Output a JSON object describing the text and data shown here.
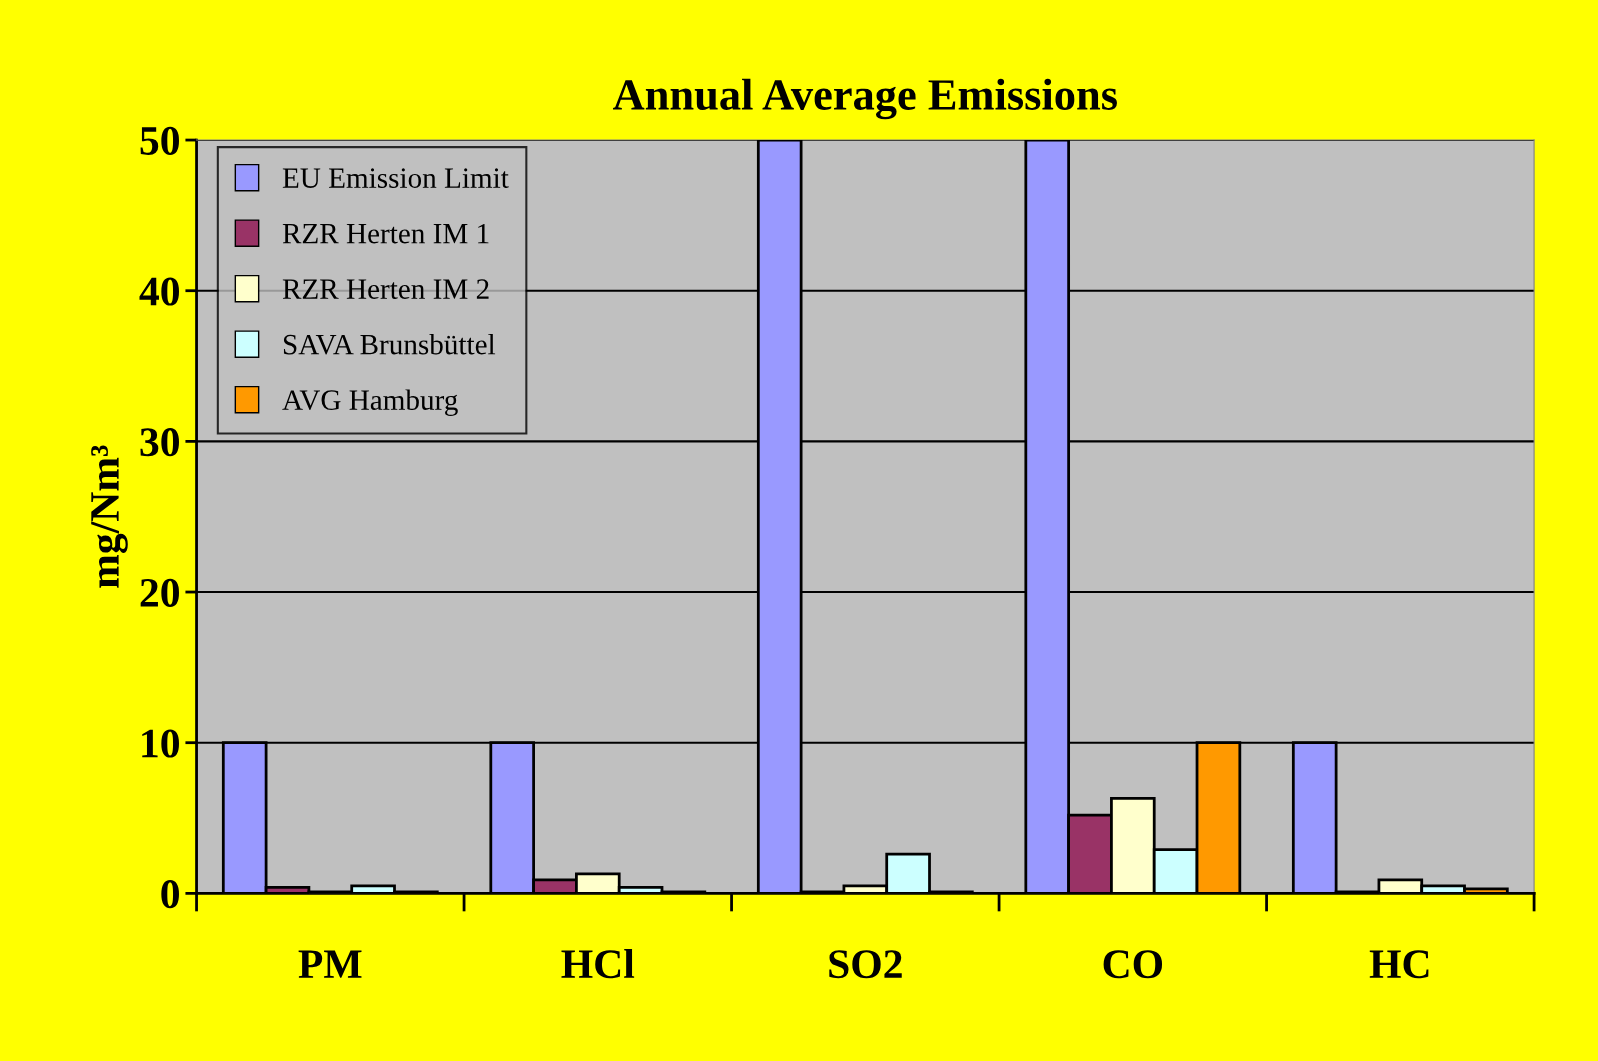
{
  "chart_data": {
    "type": "bar",
    "title": "Annual Average Emissions",
    "ylabel": "mg/Nm³",
    "categories": [
      "PM",
      "HCl",
      "SO2",
      "CO",
      "HC"
    ],
    "series": [
      {
        "name": "EU Emission Limit",
        "color": "#9999ff",
        "values": [
          10,
          10,
          50,
          50,
          10
        ]
      },
      {
        "name": "RZR Herten IM 1",
        "color": "#993366",
        "values": [
          0.4,
          0.9,
          0.1,
          5.2,
          0.1
        ]
      },
      {
        "name": "RZR Herten IM 2",
        "color": "#ffffcc",
        "values": [
          0.1,
          1.3,
          0.5,
          6.3,
          0.9
        ]
      },
      {
        "name": "SAVA Brunsbüttel",
        "color": "#ccffff",
        "values": [
          0.5,
          0.4,
          2.6,
          2.9,
          0.5
        ]
      },
      {
        "name": "AVG Hamburg",
        "color": "#ff9900",
        "values": [
          0.1,
          0.1,
          0.1,
          10,
          0.3
        ]
      }
    ],
    "ylim": [
      0,
      50
    ],
    "yticks": [
      0,
      10,
      20,
      30,
      40,
      50
    ],
    "grid": "y",
    "legend": "top left"
  }
}
